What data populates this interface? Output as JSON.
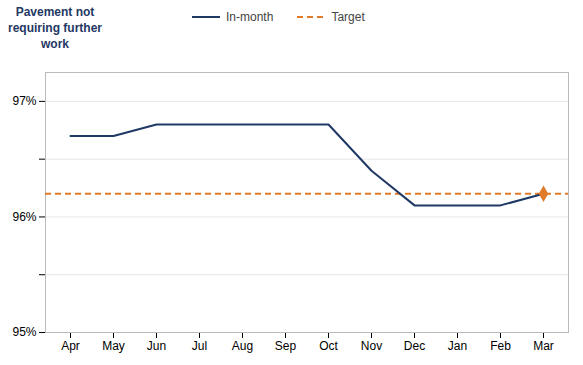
{
  "chart_data": {
    "type": "line",
    "ylabel": "Pavement not\nrequiring further\nwork",
    "categories": [
      "Apr",
      "May",
      "Jun",
      "Jul",
      "Aug",
      "Sep",
      "Oct",
      "Nov",
      "Dec",
      "Jan",
      "Feb",
      "Mar"
    ],
    "series": [
      {
        "name": "In-month",
        "color": "#1f3864",
        "values": [
          96.7,
          96.7,
          96.8,
          96.8,
          96.8,
          96.8,
          96.8,
          96.4,
          96.1,
          96.1,
          96.1,
          96.2
        ]
      }
    ],
    "target": {
      "name": "Target",
      "value": 96.2,
      "color": "#e07b2a",
      "line_style": "dashed",
      "marker": "diamond"
    },
    "ylim": [
      95.0,
      97.25
    ],
    "yticks": [
      {
        "value": 95.0,
        "label": "95%"
      },
      {
        "value": 95.5,
        "label": null
      },
      {
        "value": 96.0,
        "label": "96%"
      },
      {
        "value": 96.5,
        "label": null
      },
      {
        "value": 97.0,
        "label": "97%"
      }
    ],
    "grid": true
  }
}
